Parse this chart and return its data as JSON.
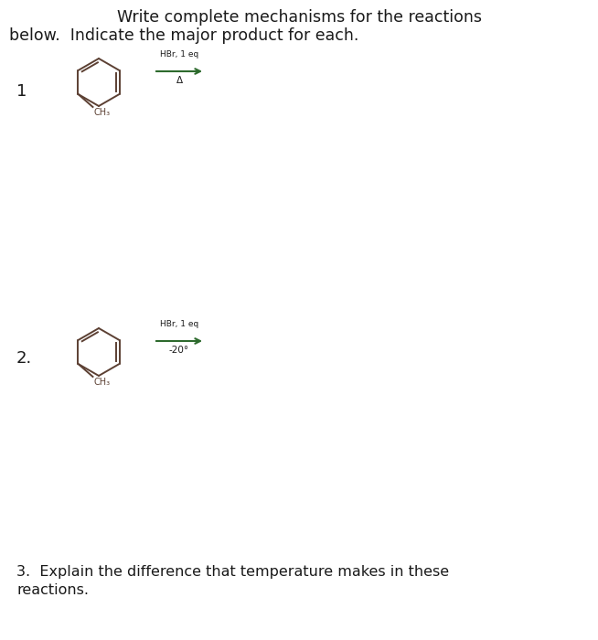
{
  "title_line1": "Write complete mechanisms for the reactions",
  "title_line2": "below.  Indicate the major product for each.",
  "reaction1_label": "1",
  "reaction1_reagent_top": "HBr, 1 eq",
  "reaction1_reagent_bot": "Δ",
  "reaction2_label": "2.",
  "reaction2_reagent_top": "HBr, 1 eq",
  "reaction2_reagent_bot": "-20°",
  "question3": "3.  Explain the difference that temperature makes in these",
  "question3b": "reactions.",
  "bg_color": "#ffffff",
  "text_color": "#1a1a1a",
  "molecule_color": "#5c4033",
  "arrow_color": "#2d6a2d",
  "font_size_title": 12.5,
  "font_size_label": 13,
  "font_size_reagent": 6.5,
  "font_size_CH3": 7,
  "font_size_q3": 11.5
}
